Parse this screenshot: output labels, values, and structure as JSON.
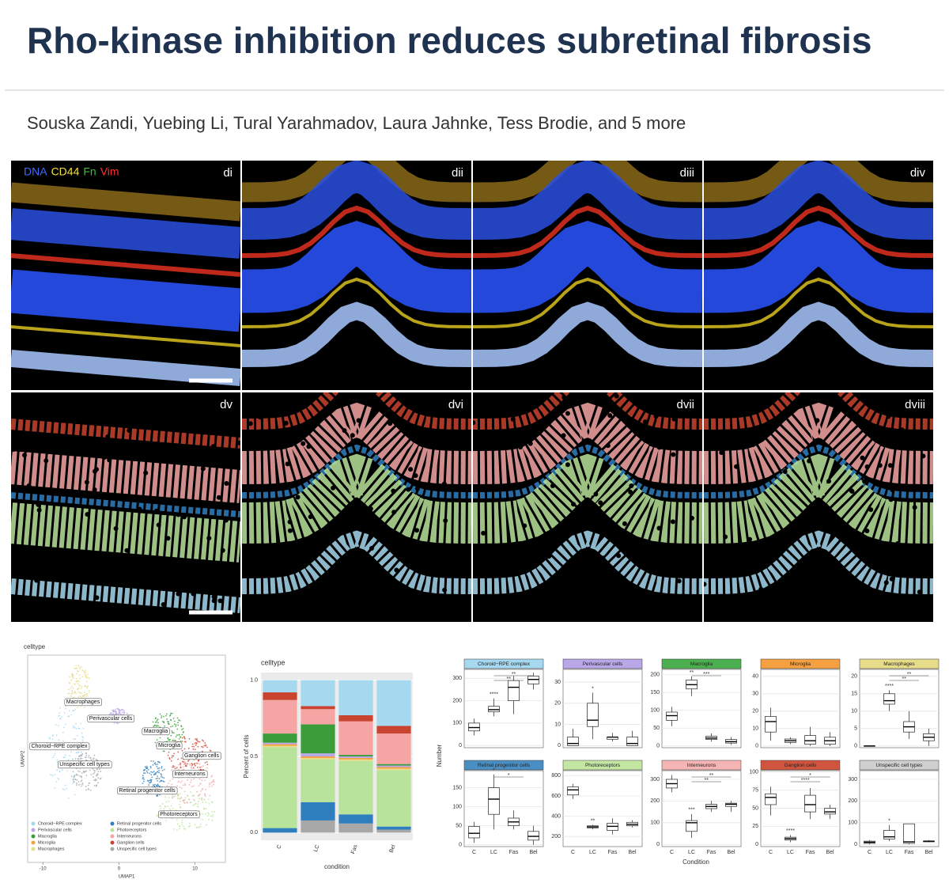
{
  "header": {
    "title": "Rho-kinase inhibition reduces subretinal fibrosis",
    "authors": "Souska Zandi, Yuebing Li, Tural Yarahmadov, Laura Jahnke, Tess Brodie, and 5 more"
  },
  "micrographs": {
    "stain_legend": [
      {
        "text": "DNA",
        "color": "#3b6cff"
      },
      {
        "text": "CD44",
        "color": "#f2e03a"
      },
      {
        "text": "Fn",
        "color": "#38c23a"
      },
      {
        "text": "Vim",
        "color": "#ff3030"
      }
    ],
    "panels": [
      "di",
      "dii",
      "diii",
      "div",
      "dv",
      "dvi",
      "dvii",
      "dviii"
    ]
  },
  "umap": {
    "title": "celltype",
    "x_label": "UMAP1",
    "y_label": "UMAP2",
    "xticks": [
      -10,
      0,
      10
    ],
    "xlim": [
      -12,
      14
    ],
    "clusters": [
      "Macrophages",
      "Perivascular cells",
      "Choroid−RPE complex",
      "Unspecific cell types",
      "Macroglia",
      "Microglia",
      "Ganglion cells",
      "Interneurons",
      "Retinal progenitor cells",
      "Photoreceptors"
    ],
    "legend": [
      {
        "name": "Choroid−RPE complex",
        "color": "#a6d8ef"
      },
      {
        "name": "Perivascular cells",
        "color": "#b9a7e8"
      },
      {
        "name": "Macroglia",
        "color": "#3a9d3a"
      },
      {
        "name": "Microglia",
        "color": "#f5a142"
      },
      {
        "name": "Macrophages",
        "color": "#e6dc8a"
      },
      {
        "name": "Retinal progenitor cells",
        "color": "#2f7fbf"
      },
      {
        "name": "Photoreceptors",
        "color": "#b8e39a"
      },
      {
        "name": "Interneurons",
        "color": "#f6a5a5"
      },
      {
        "name": "Ganglion cells",
        "color": "#c8442e"
      },
      {
        "name": "Unspecific cell types",
        "color": "#a8a8a8"
      }
    ]
  },
  "chart_data": [
    {
      "type": "stacked_bar",
      "title": "celltype",
      "x_label": "condition",
      "y_label": "Percent of cells",
      "categories": [
        "C",
        "LC",
        "Fas",
        "Bel"
      ],
      "ylim": [
        -0.05,
        1.05
      ],
      "yticks": [
        {
          "value": 0,
          "label": "0.0"
        },
        {
          "value": 0.5,
          "label": "0.5"
        },
        {
          "value": 1,
          "label": "1.0"
        }
      ],
      "series": [
        {
          "color": "#a8a8a8",
          "values": [
            0,
            0.08,
            0.06,
            0.02
          ]
        },
        {
          "color": "#2f7fbf",
          "values": [
            0.03,
            0.12,
            0.06,
            0.02
          ]
        },
        {
          "color": "#b8e39a",
          "values": [
            0.53,
            0.28,
            0.35,
            0.37
          ]
        },
        {
          "color": "#e6dc8a",
          "values": [
            0.01,
            0.01,
            0.01,
            0.01
          ]
        },
        {
          "color": "#f5a142",
          "values": [
            0.01,
            0.01,
            0.01,
            0.01
          ]
        },
        {
          "color": "#b9a7e8",
          "values": [
            0.01,
            0.02,
            0.01,
            0.01
          ]
        },
        {
          "color": "#3a9d3a",
          "values": [
            0.06,
            0.19,
            0.01,
            0.01
          ]
        },
        {
          "color": "#f6a5a5",
          "values": [
            0.22,
            0.1,
            0.22,
            0.2
          ]
        },
        {
          "color": "#c8442e",
          "values": [
            0.05,
            0.02,
            0.04,
            0.05
          ]
        },
        {
          "color": "#a6d8ef",
          "values": [
            0.08,
            0.17,
            0.23,
            0.3
          ]
        }
      ]
    },
    {
      "type": "box",
      "x_label": "Condition",
      "y_label": "Number",
      "categories": [
        "C",
        "LC",
        "Fas",
        "Bel"
      ],
      "panels": [
        {
          "title": "Choroid−RPE complex",
          "color": "#a6d8ef",
          "ylim": [
            -10,
            340
          ],
          "yticks": [
            0,
            100,
            200,
            300
          ],
          "significance": [
            "****",
            "**",
            "**"
          ],
          "boxes": [
            [
              45,
              65,
              80,
              100,
              120
            ],
            [
              130,
              150,
              160,
              175,
              210
            ],
            [
              140,
              200,
              260,
              290,
              310
            ],
            [
              250,
              275,
              295,
              310,
              325
            ]
          ]
        },
        {
          "title": "Perivascular cells",
          "color": "#b9a7e8",
          "ylim": [
            -1,
            36
          ],
          "yticks": [
            0,
            10,
            20,
            30
          ],
          "significance": [
            "*"
          ],
          "boxes": [
            [
              0,
              0,
              1,
              4,
              8
            ],
            [
              3,
              9,
              12,
              20,
              25
            ],
            [
              2,
              3,
              4,
              4,
              6
            ],
            [
              0,
              0,
              1,
              4,
              7
            ]
          ]
        },
        {
          "title": "Macroglia",
          "color": "#4caf50",
          "ylim": [
            -5,
            215
          ],
          "yticks": [
            0,
            50,
            100,
            150,
            200
          ],
          "significance": [
            "**",
            "***"
          ],
          "boxes": [
            [
              55,
              72,
              85,
              95,
              110
            ],
            [
              140,
              160,
              172,
              185,
              195
            ],
            [
              12,
              18,
              22,
              27,
              35
            ],
            [
              3,
              8,
              12,
              18,
              25
            ]
          ]
        },
        {
          "title": "Microglia",
          "color": "#f5a142",
          "ylim": [
            -1,
            44
          ],
          "yticks": [
            0,
            10,
            20,
            30,
            40
          ],
          "significance": [],
          "boxes": [
            [
              3,
              8,
              14,
              17,
              22
            ],
            [
              1,
              2,
              3,
              4,
              5
            ],
            [
              0,
              1,
              3,
              6,
              11
            ],
            [
              0,
              1,
              3,
              5,
              8
            ]
          ]
        },
        {
          "title": "Macrophages",
          "color": "#e6dc8a",
          "ylim": [
            -0.5,
            22
          ],
          "yticks": [
            0,
            5,
            10,
            15,
            20
          ],
          "significance": [
            "****",
            "**",
            "**"
          ],
          "boxes": [
            [
              0,
              0,
              0,
              0,
              0
            ],
            [
              10,
              12,
              13,
              15,
              16
            ],
            [
              2,
              4,
              5.5,
              7,
              10
            ],
            [
              0,
              1.5,
              2.5,
              3.5,
              5
            ]
          ]
        },
        {
          "title": "Retinal progenitor cells",
          "color": "#4a8fc4",
          "ylim": [
            -5,
            195
          ],
          "yticks": [
            0,
            50,
            100,
            150
          ],
          "significance": [
            "*",
            "*"
          ],
          "boxes": [
            [
              5,
              18,
              30,
              48,
              60
            ],
            [
              40,
              80,
              120,
              150,
              185
            ],
            [
              40,
              50,
              60,
              70,
              90
            ],
            [
              0,
              12,
              22,
              35,
              50
            ]
          ]
        },
        {
          "title": "Photoreceptors",
          "color": "#c4e6a3",
          "ylim": [
            100,
            850
          ],
          "yticks": [
            200,
            400,
            600,
            800
          ],
          "significance": [
            "**"
          ],
          "boxes": [
            [
              570,
              610,
              660,
              690,
              720
            ],
            [
              270,
              285,
              295,
              305,
              315
            ],
            [
              220,
              260,
              300,
              330,
              380
            ],
            [
              290,
              305,
              320,
              340,
              360
            ]
          ]
        },
        {
          "title": "Interneurons",
          "color": "#f6b5b5",
          "ylim": [
            -10,
            340
          ],
          "yticks": [
            0,
            100,
            200,
            300
          ],
          "significance": [
            "***",
            "**",
            "**"
          ],
          "boxes": [
            [
              240,
              260,
              280,
              300,
              320
            ],
            [
              30,
              60,
              100,
              110,
              140
            ],
            [
              150,
              165,
              175,
              185,
              200
            ],
            [
              150,
              175,
              185,
              190,
              200
            ]
          ]
        },
        {
          "title": "Ganglion cells",
          "color": "#d1553e",
          "ylim": [
            -3,
            102
          ],
          "yticks": [
            0,
            25,
            50,
            75,
            100
          ],
          "significance": [
            "****",
            "****",
            "*"
          ],
          "boxes": [
            [
              40,
              55,
              65,
              70,
              80
            ],
            [
              3,
              6,
              8,
              10,
              13
            ],
            [
              35,
              45,
              55,
              68,
              78
            ],
            [
              35,
              42,
              45,
              50,
              55
            ]
          ]
        },
        {
          "title": "Unspecific cell types",
          "color": "#cfcfcf",
          "ylim": [
            -10,
            340
          ],
          "yticks": [
            0,
            100,
            200,
            300
          ],
          "significance": [
            "*"
          ],
          "boxes": [
            [
              0,
              5,
              10,
              15,
              20
            ],
            [
              15,
              25,
              35,
              65,
              90
            ],
            [
              0,
              5,
              12,
              95,
              95
            ],
            [
              10,
              12,
              15,
              15,
              20
            ]
          ]
        }
      ]
    }
  ]
}
